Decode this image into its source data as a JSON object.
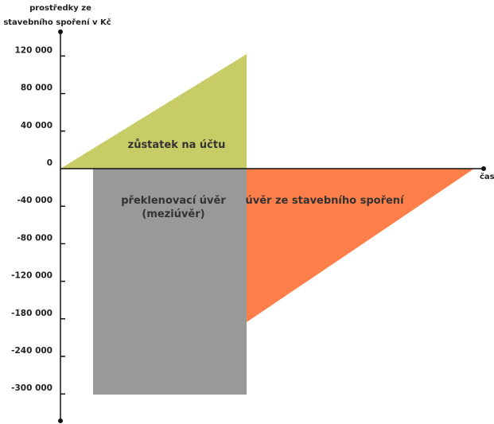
{
  "chart_data": {
    "type": "area",
    "ylabel_lines": [
      "prostředky ze",
      "stavebního spoření v Kč"
    ],
    "xlabel": "čas",
    "y_ticks": [
      "120 000",
      "80 000",
      "40 000",
      "0",
      "-40 000",
      "-80 000",
      "-120 000",
      "-180 000",
      "-240 000",
      "-300 000"
    ],
    "regions": [
      {
        "name": "zustatek",
        "label_lines": [
          "zůstatek na účtu"
        ],
        "color": "#c8cc66"
      },
      {
        "name": "preklenovaci",
        "label_lines": [
          "překlenovací úvěr",
          "(meziúvěr)"
        ],
        "color": "#999999"
      },
      {
        "name": "uver",
        "label_lines": [
          "úvěr ze stavebního spoření"
        ],
        "color": "#ff7f4a"
      }
    ]
  }
}
